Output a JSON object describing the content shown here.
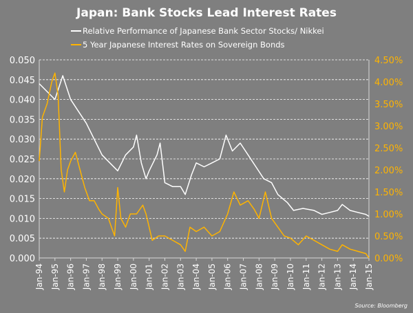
{
  "chart_data": {
    "type": "line",
    "title": "Japan: Bank Stocks Lead Interest Rates",
    "source": "Source: Bloomberg",
    "x_tick_labels": [
      "Jan-94",
      "Jan-95",
      "Jan-96",
      "Jan-97",
      "Jan-98",
      "Jan-99",
      "Jan-00",
      "Jan-01",
      "Jan-02",
      "Jan-03",
      "Jan-04",
      "Jan-05",
      "Jan-06",
      "Jan-07",
      "Jan-08",
      "Jan-09",
      "Jan-10",
      "Jan-11",
      "Jan-12",
      "Jan-13",
      "Jan-14",
      "Jan-15"
    ],
    "xlim": [
      1994,
      2015
    ],
    "y_left": {
      "ylim": [
        0,
        0.05
      ],
      "ticks": [
        "0.000",
        "0.005",
        "0.010",
        "0.015",
        "0.020",
        "0.025",
        "0.030",
        "0.035",
        "0.040",
        "0.045",
        "0.050"
      ]
    },
    "y_right": {
      "ylim": [
        0,
        4.5
      ],
      "ticks": [
        "0.00%",
        "0.50%",
        "1.00%",
        "1.50%",
        "2.00%",
        "2.50%",
        "3.00%",
        "3.50%",
        "4.00%",
        "4.50%"
      ]
    },
    "grid": true,
    "series": [
      {
        "name": "Relative Performance of Japanese Bank Sector Stocks/ Nikkei",
        "axis": "left",
        "color": "#ffffff",
        "x": [
          1994,
          1994.5,
          1995,
          1995.5,
          1996,
          1996.5,
          1997,
          1997.5,
          1998,
          1998.5,
          1999,
          1999.5,
          2000,
          2000.2,
          2000.5,
          2000.8,
          2001,
          2001.5,
          2001.7,
          2002,
          2002.5,
          2003,
          2003.3,
          2003.7,
          2004,
          2004.5,
          2005,
          2005.5,
          2005.9,
          2006.3,
          2006.8,
          2007.3,
          2007.8,
          2008.3,
          2008.8,
          2009.2,
          2009.8,
          2010.2,
          2010.8,
          2011.5,
          2012,
          2012.5,
          2013,
          2013.3,
          2013.8,
          2014.3,
          2014.8,
          2015
        ],
        "y": [
          0.044,
          0.042,
          0.04,
          0.046,
          0.04,
          0.037,
          0.034,
          0.03,
          0.026,
          0.024,
          0.022,
          0.026,
          0.028,
          0.031,
          0.024,
          0.02,
          0.022,
          0.026,
          0.029,
          0.019,
          0.018,
          0.018,
          0.016,
          0.021,
          0.024,
          0.023,
          0.024,
          0.025,
          0.031,
          0.027,
          0.029,
          0.026,
          0.023,
          0.02,
          0.019,
          0.016,
          0.014,
          0.012,
          0.0125,
          0.012,
          0.011,
          0.0115,
          0.012,
          0.0135,
          0.012,
          0.0115,
          0.011,
          0.0105
        ]
      },
      {
        "name": "5 Year Japanese Interest Rates on Sovereign Bonds",
        "axis": "right",
        "color": "#ffb400",
        "x": [
          1994,
          1994.2,
          1994.5,
          1994.8,
          1995,
          1995.2,
          1995.4,
          1995.6,
          1995.8,
          1996,
          1996.3,
          1996.6,
          1996.9,
          1997.2,
          1997.5,
          1997.8,
          1998,
          1998.4,
          1998.8,
          1999,
          1999.2,
          1999.5,
          1999.8,
          2000.2,
          2000.6,
          2000.8,
          2001,
          2001.2,
          2001.6,
          2002,
          2002.5,
          2003,
          2003.3,
          2003.6,
          2004,
          2004.5,
          2005,
          2005.5,
          2006,
          2006.4,
          2006.8,
          2007.3,
          2007.7,
          2008,
          2008.4,
          2008.8,
          2009.2,
          2009.6,
          2010,
          2010.5,
          2011,
          2011.5,
          2012,
          2012.5,
          2013,
          2013.3,
          2013.8,
          2014.3,
          2014.8,
          2015
        ],
        "y": [
          2.2,
          3.2,
          3.5,
          4.0,
          4.2,
          3.7,
          2.0,
          1.5,
          2.0,
          2.2,
          2.4,
          2.0,
          1.6,
          1.3,
          1.3,
          1.1,
          1.0,
          0.9,
          0.5,
          1.6,
          0.9,
          0.7,
          1.0,
          1.0,
          1.2,
          1.0,
          0.7,
          0.4,
          0.5,
          0.5,
          0.4,
          0.3,
          0.15,
          0.7,
          0.6,
          0.7,
          0.5,
          0.6,
          1.0,
          1.5,
          1.2,
          1.3,
          1.1,
          0.9,
          1.5,
          0.9,
          0.7,
          0.5,
          0.45,
          0.3,
          0.5,
          0.4,
          0.3,
          0.2,
          0.15,
          0.3,
          0.2,
          0.15,
          0.1,
          0.0
        ]
      }
    ]
  }
}
